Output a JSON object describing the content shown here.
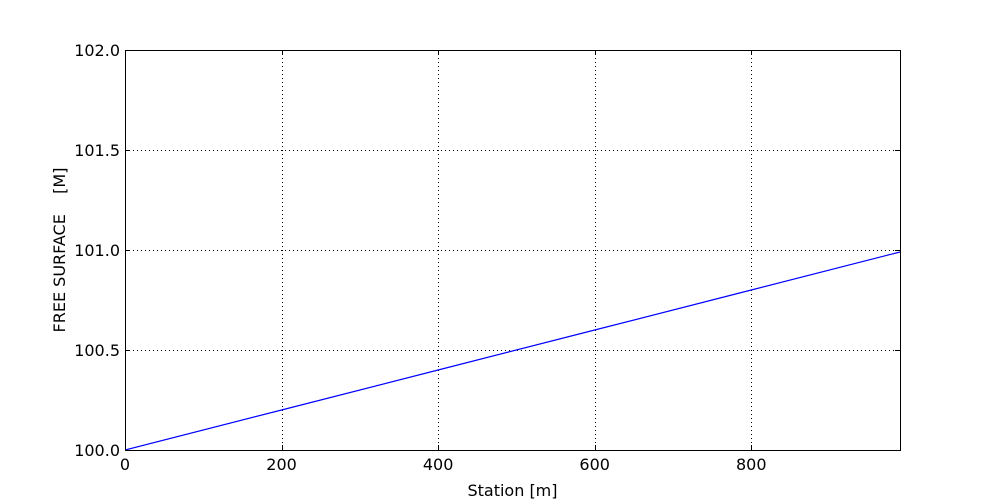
{
  "chart_data": {
    "type": "line",
    "title": "",
    "xlabel": "Station [m]",
    "ylabel": "FREE SURFACE    [M]",
    "xlim": [
      0,
      990
    ],
    "ylim": [
      100.0,
      102.0
    ],
    "x_ticks": [
      0,
      200,
      400,
      600,
      800
    ],
    "x_tick_labels": [
      "0",
      "200",
      "400",
      "600",
      "800"
    ],
    "y_ticks": [
      100.0,
      100.5,
      101.0,
      101.5,
      102.0
    ],
    "y_tick_labels": [
      "100.0",
      "100.5",
      "101.0",
      "101.5",
      "102.0"
    ],
    "grid": true,
    "series": [
      {
        "color": "#0000ff",
        "x": [
          0,
          200,
          400,
          600,
          800,
          990
        ],
        "y": [
          100.0,
          100.2,
          100.4,
          100.6,
          100.8,
          100.99
        ]
      }
    ]
  }
}
